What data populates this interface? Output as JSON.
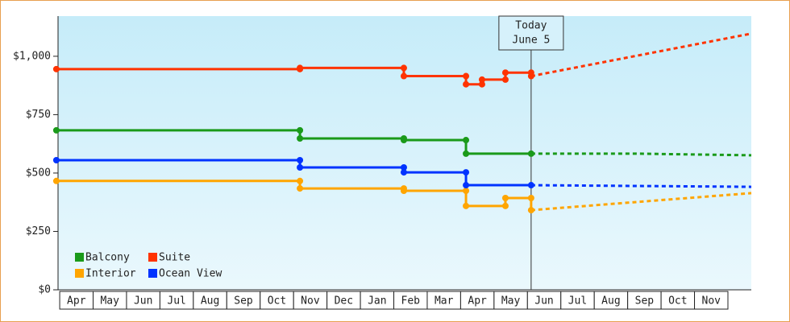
{
  "chart_data": {
    "type": "step-line",
    "ylim": [
      0,
      1172
    ],
    "yticks": [
      {
        "value": 0,
        "label": "$0"
      },
      {
        "value": 250,
        "label": "$250"
      },
      {
        "value": 500,
        "label": "$500"
      },
      {
        "value": 750,
        "label": "$750"
      },
      {
        "value": 1000,
        "label": "$1,000"
      }
    ],
    "xlim": [
      -0.05,
      20.7
    ],
    "categories": [
      "Apr",
      "May",
      "Jun",
      "Jul",
      "Aug",
      "Sep",
      "Oct",
      "Nov",
      "Dec",
      "Jan",
      "Feb",
      "Mar",
      "Apr",
      "May",
      "Jun",
      "Jul",
      "Aug",
      "Sep",
      "Oct",
      "Nov"
    ],
    "annotation": {
      "x": 14.11,
      "lines": [
        "Today",
        "June 5"
      ]
    },
    "legend": "lower left",
    "series": [
      {
        "name": "Balcony",
        "color": "#1a9a1a",
        "x": [
          -0.1,
          7.19,
          7.19,
          10.3,
          10.3,
          12.16,
          12.16,
          14.11
        ],
        "values": [
          683,
          683,
          648,
          648,
          641,
          641,
          583,
          583
        ],
        "projection": {
          "x": [
            14.11,
            17.27,
            20.7
          ],
          "values": [
            583,
            583,
            576
          ]
        }
      },
      {
        "name": "Suite",
        "color": "#ff3300",
        "x": [
          -0.1,
          7.19,
          7.19,
          10.3,
          10.3,
          12.16,
          12.16,
          12.64,
          12.64,
          13.34,
          13.34,
          14.11,
          14.11
        ],
        "values": [
          945,
          945,
          950,
          950,
          915,
          915,
          880,
          880,
          900,
          900,
          930,
          930,
          915
        ],
        "projection": {
          "x": [
            14.11,
            20.7
          ],
          "values": [
            915,
            1097
          ]
        }
      },
      {
        "name": "Interior",
        "color": "#ffa500",
        "x": [
          -0.1,
          7.19,
          7.19,
          10.3,
          10.3,
          12.16,
          12.16,
          13.34,
          13.34,
          14.11,
          14.11
        ],
        "values": [
          466,
          466,
          434,
          434,
          424,
          424,
          359,
          359,
          393,
          393,
          341
        ],
        "projection": {
          "x": [
            14.11,
            20.7
          ],
          "values": [
            341,
            414
          ]
        }
      },
      {
        "name": "Ocean View",
        "color": "#0033ff",
        "x": [
          -0.1,
          7.19,
          7.19,
          10.3,
          10.3,
          12.16,
          12.16,
          14.11
        ],
        "values": [
          555,
          555,
          524,
          524,
          503,
          503,
          448,
          448
        ],
        "projection": {
          "x": [
            14.11,
            20.7
          ],
          "values": [
            448,
            441
          ]
        }
      }
    ]
  }
}
